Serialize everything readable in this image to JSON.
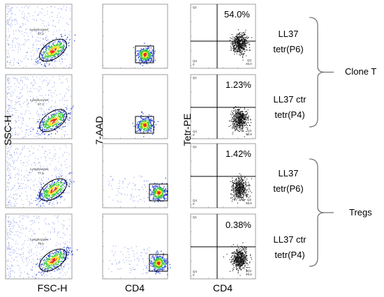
{
  "colors": {
    "density_blue": "#2f49d8",
    "density_green": "#35c93a",
    "density_yellow": "#f2e21e",
    "density_red": "#e8261c",
    "quadrant_dots": "#111111",
    "frame": "#888888"
  },
  "chart_data": {
    "type": "scatter",
    "columns": [
      {
        "ylabel": "SSC-H",
        "xlabel": "FSC-H",
        "gate_name": "Lymphocytes",
        "gate_values": [
          "67,3",
          "67,3",
          "77,5",
          "79,5"
        ]
      },
      {
        "ylabel": "7-AAD",
        "xlabel": "CD4"
      },
      {
        "ylabel": "Tetr-PE",
        "xlabel": "CD4",
        "quadrant_labels": {
          "q1": "Q1",
          "q2": "Q2",
          "q3": "Q3",
          "q4": "Q4"
        },
        "q2_percent": [
          "54.0%",
          "1.23%",
          "1.42%",
          "0.38%"
        ],
        "q3_values": [
          "46,0",
          "98,8",
          "98,6",
          "99,6"
        ]
      }
    ],
    "samples": [
      "LL37 tetr(P6)",
      "LL37 ctr tetr(P4)",
      "LL37 tetr(P6)",
      "LL37 ctr tetr(P4)"
    ],
    "groups": [
      {
        "name": "Clone T",
        "rows": [
          1,
          2
        ]
      },
      {
        "name": "Tregs",
        "rows": [
          3,
          4
        ]
      }
    ]
  },
  "labels": {
    "ssc": "SSC-H",
    "fsc": "FSC-H",
    "aad": "7-AAD",
    "cd4_a": "CD4",
    "tetr": "Tetr-PE",
    "cd4_b": "CD4",
    "pct": [
      "54.0%",
      "1.23%",
      "1.42%",
      "0.38%"
    ],
    "samples": [
      [
        "LL37",
        "tetr(P6)"
      ],
      [
        "LL37 ctr",
        "tetr(P4)"
      ],
      [
        "LL37",
        "tetr(P6)"
      ],
      [
        "LL37 ctr",
        "tetr(P4)"
      ]
    ],
    "group_clone_t": "Clone T",
    "group_tregs": "Tregs"
  }
}
